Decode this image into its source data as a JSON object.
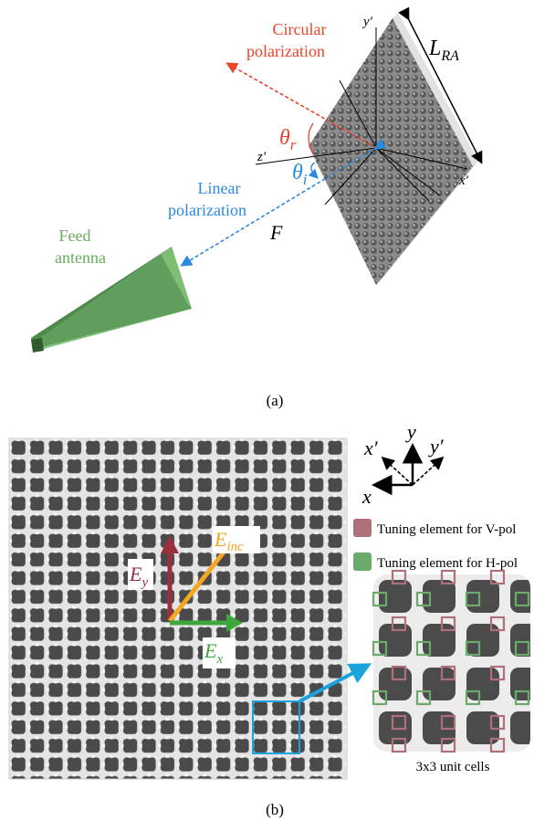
{
  "panel_a": {
    "caption": "(a)",
    "circular_polarization": [
      "Circular",
      "polarization"
    ],
    "linear_polarization": [
      "Linear",
      "polarization"
    ],
    "feed_antenna": [
      "Feed",
      "antenna"
    ],
    "theta_r": {
      "base": "θ",
      "sub": "r"
    },
    "theta_i": {
      "base": "θ",
      "sub": "i"
    },
    "distance": "F",
    "size": {
      "base": "L",
      "sub": "RA"
    },
    "axis_x": "x′",
    "axis_y": "y′",
    "axis_z": "z′"
  },
  "panel_b": {
    "caption": "(b)",
    "axes": {
      "x": "x",
      "y": "y",
      "x_prime": "x′",
      "y_prime": "y′"
    },
    "legend": [
      {
        "label": "Tuning element for V-pol",
        "color": "#b0707a"
      },
      {
        "label": "Tuning element for H-pol",
        "color": "#6aaa6a"
      }
    ],
    "field_vectors": {
      "ey": {
        "base": "E",
        "sub": "y",
        "color": "#9b2f3f"
      },
      "einc": {
        "base": "E",
        "sub": "inc",
        "color": "#f5a623"
      },
      "ex": {
        "base": "E",
        "sub": "x",
        "color": "#3da63d"
      }
    },
    "inset_caption": "3x3 unit cells"
  },
  "colors": {
    "red_text": "#e8452a",
    "blue_text": "#2a8ae0",
    "green_text": "#6aab5e",
    "cyan_arrow": "#1aa3dc"
  }
}
